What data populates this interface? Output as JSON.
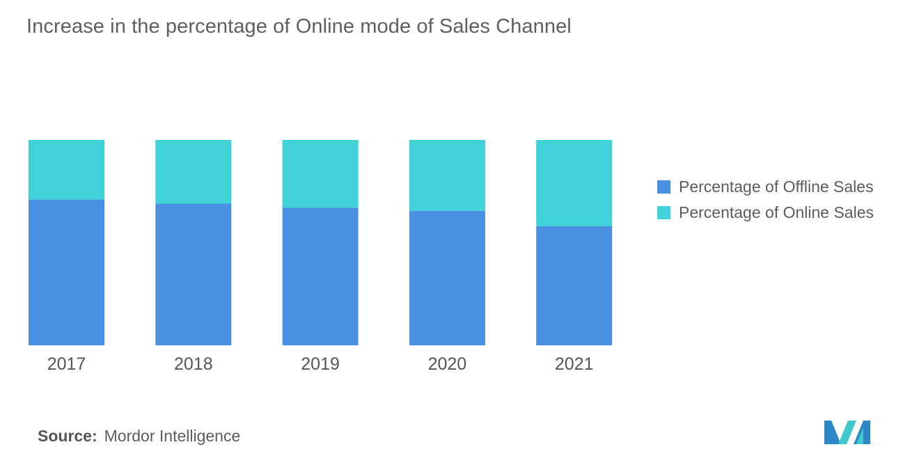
{
  "header": {
    "title": "Increase in the percentage of Online mode of Sales Channel"
  },
  "chart_data": {
    "type": "bar",
    "stacked": true,
    "normalized": true,
    "categories": [
      "2017",
      "2018",
      "2019",
      "2020",
      "2021"
    ],
    "series": [
      {
        "name": "Percentage of Offline Sales",
        "color": "#4a90e2",
        "values": [
          71,
          69,
          67,
          65.5,
          58
        ]
      },
      {
        "name": "Percentage of Online Sales",
        "color": "#40d1d9",
        "values": [
          29,
          31,
          33,
          34.5,
          42
        ]
      }
    ],
    "title": "Increase in the percentage of Online mode of Sales Channel",
    "xlabel": "",
    "ylabel": "",
    "ylim": [
      0,
      100
    ],
    "grid": false,
    "y_axis_visible": false,
    "legend_position": "right"
  },
  "legend": {
    "items": [
      {
        "label": "Percentage of Offline Sales",
        "color": "#4a90e2"
      },
      {
        "label": "Percentage of Online Sales",
        "color": "#40d1d9"
      }
    ]
  },
  "footer": {
    "source_key": "Source:",
    "source_value": "Mordor Intelligence",
    "logo_icon": "mordor-intelligence-logo-icon"
  }
}
